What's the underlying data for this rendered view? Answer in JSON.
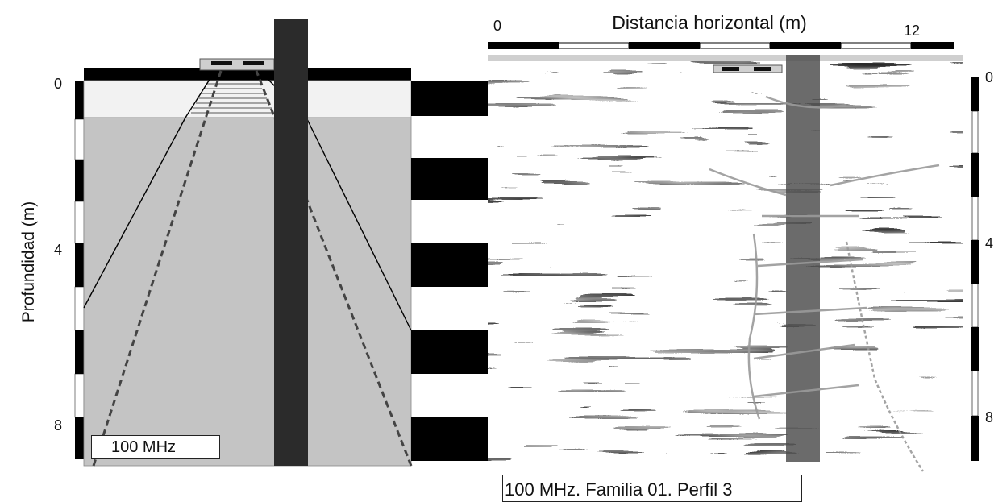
{
  "figure": {
    "top_axis": {
      "title": "Distancia horizontal (m)",
      "tick_start": "0",
      "tick_end": "12"
    },
    "left_axis": {
      "title": "Profundidad (m)",
      "ticks": [
        "0",
        "4",
        "8"
      ]
    },
    "right_axis_ticks": [
      "0",
      "4",
      "8"
    ],
    "antenna_label": "100 MHz",
    "profile_caption": "100 MHz. Familia 01. Perfil 3",
    "colors": {
      "soil_upper": "#f2f2f2",
      "soil_lower": "#c4c4c4",
      "column": "#2b2b2b",
      "scale_bar": "#000000",
      "radar_column": "#4a4a4a"
    },
    "icons": [
      "gpr-antenna-icon"
    ]
  }
}
